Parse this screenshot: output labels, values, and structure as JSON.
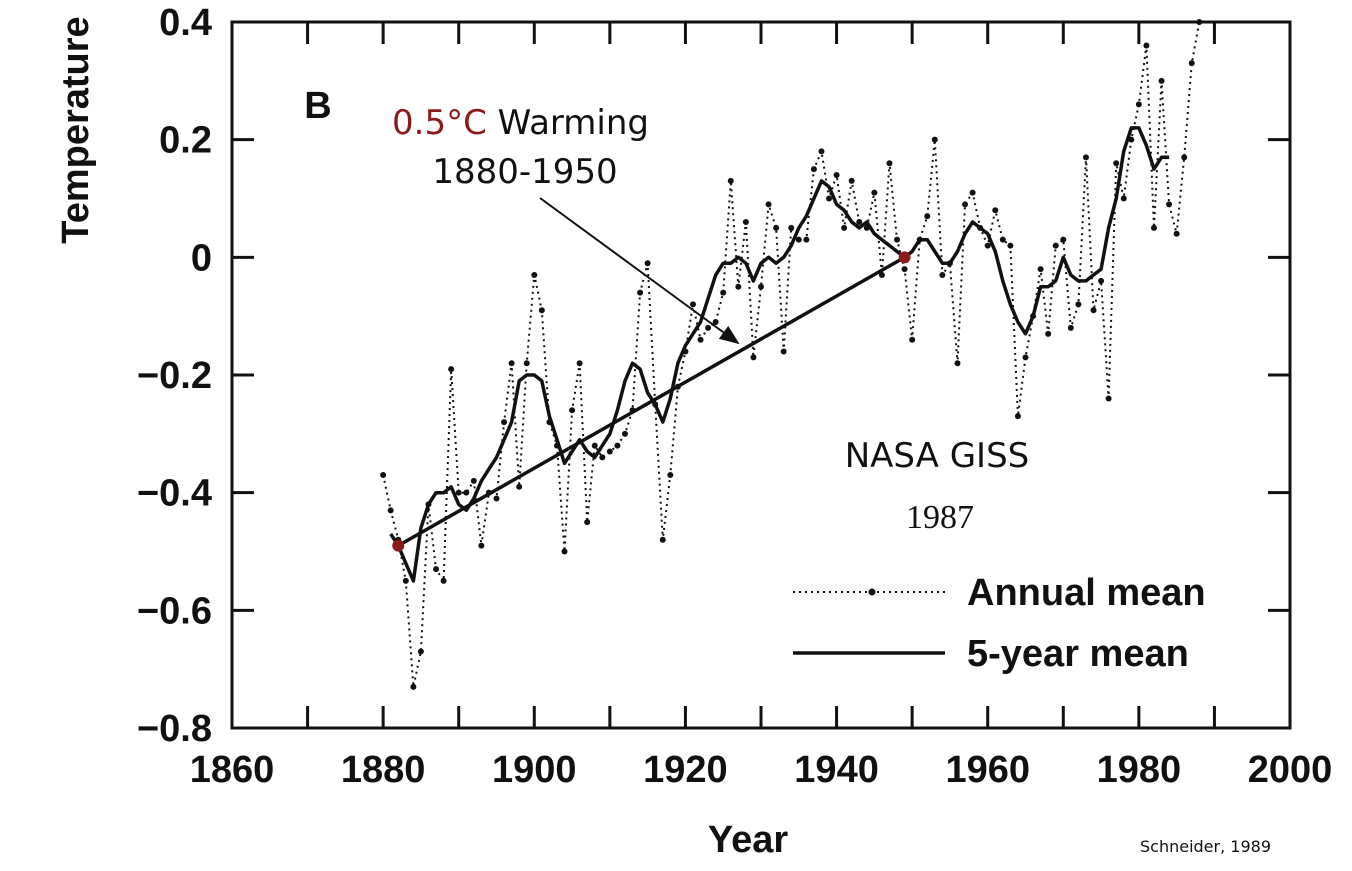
{
  "chart_data": {
    "type": "line",
    "panel_label": "B",
    "xlabel": "Year",
    "ylabel": "Temperature",
    "source": "Schneider, 1989",
    "annotations": {
      "warming_amount": "0.5°C",
      "warming_word": "Warming",
      "warming_period": "1880-1950",
      "agency": "NASA GISS",
      "agency_year": "1987"
    },
    "xlim": [
      1860,
      2000
    ],
    "xticks": [
      1860,
      1880,
      1900,
      1920,
      1940,
      1960,
      1980,
      2000
    ],
    "xminorticks": [
      1870,
      1890,
      1910,
      1930,
      1950,
      1970,
      1990
    ],
    "ylim": [
      -0.8,
      0.4
    ],
    "yticks": [
      {
        "value": -0.8,
        "label": "−0.8"
      },
      {
        "value": -0.6,
        "label": "−0.6"
      },
      {
        "value": -0.4,
        "label": "−0.4"
      },
      {
        "value": -0.2,
        "label": "−0.2"
      },
      0,
      0.2,
      0.4
    ],
    "legend": "lower right",
    "x": [
      1880,
      1881,
      1882,
      1883,
      1884,
      1885,
      1886,
      1887,
      1888,
      1889,
      1890,
      1891,
      1892,
      1893,
      1894,
      1895,
      1896,
      1897,
      1898,
      1899,
      1900,
      1901,
      1902,
      1903,
      1904,
      1905,
      1906,
      1907,
      1908,
      1909,
      1910,
      1911,
      1912,
      1913,
      1914,
      1915,
      1916,
      1917,
      1918,
      1919,
      1920,
      1921,
      1922,
      1923,
      1924,
      1925,
      1926,
      1927,
      1928,
      1929,
      1930,
      1931,
      1932,
      1933,
      1934,
      1935,
      1936,
      1937,
      1938,
      1939,
      1940,
      1941,
      1942,
      1943,
      1944,
      1945,
      1946,
      1947,
      1948,
      1949,
      1950,
      1951,
      1952,
      1953,
      1954,
      1955,
      1956,
      1957,
      1958,
      1959,
      1960,
      1961,
      1962,
      1963,
      1964,
      1965,
      1966,
      1967,
      1968,
      1969,
      1970,
      1971,
      1972,
      1973,
      1974,
      1975,
      1976,
      1977,
      1978,
      1979,
      1980,
      1981,
      1982,
      1983,
      1984,
      1985,
      1986,
      1987,
      1988
    ],
    "series": [
      {
        "name": "Annual mean",
        "color": "#111111",
        "style": "dotted",
        "values": [
          -0.37,
          -0.43,
          -0.48,
          -0.55,
          -0.73,
          -0.67,
          -0.42,
          -0.53,
          -0.55,
          -0.19,
          -0.4,
          -0.4,
          -0.38,
          -0.49,
          -0.4,
          -0.41,
          -0.28,
          -0.18,
          -0.39,
          -0.18,
          -0.03,
          -0.09,
          -0.28,
          -0.32,
          -0.5,
          -0.26,
          -0.18,
          -0.45,
          -0.32,
          -0.34,
          -0.33,
          -0.32,
          -0.3,
          -0.26,
          -0.06,
          -0.01,
          -0.25,
          -0.48,
          -0.37,
          -0.22,
          -0.16,
          -0.08,
          -0.14,
          -0.12,
          -0.11,
          -0.06,
          0.13,
          -0.05,
          0.06,
          -0.17,
          -0.05,
          0.09,
          0.05,
          -0.16,
          0.05,
          0.03,
          0.03,
          0.15,
          0.18,
          0.1,
          0.14,
          0.05,
          0.13,
          0.06,
          0.05,
          0.11,
          -0.03,
          0.16,
          0.03,
          -0.02,
          -0.14,
          0.03,
          0.07,
          0.2,
          -0.03,
          -0.01,
          -0.18,
          0.09,
          0.11,
          0.05,
          0.02,
          0.08,
          0.03,
          0.02,
          -0.27,
          -0.17,
          -0.1,
          -0.02,
          -0.13,
          0.02,
          0.03,
          -0.12,
          -0.08,
          0.17,
          -0.09,
          -0.04,
          -0.24,
          0.16,
          0.1,
          0.2,
          0.26,
          0.36,
          0.05,
          0.3,
          0.09,
          0.04,
          0.17,
          0.33,
          0.4
        ]
      },
      {
        "name": "5-year mean",
        "color": "#111111",
        "style": "solid",
        "values": [
          null,
          -0.47,
          -0.49,
          -0.52,
          -0.55,
          -0.46,
          -0.42,
          -0.4,
          -0.4,
          -0.39,
          -0.42,
          -0.43,
          -0.41,
          -0.38,
          -0.36,
          -0.34,
          -0.31,
          -0.28,
          -0.21,
          -0.2,
          -0.2,
          -0.21,
          -0.27,
          -0.31,
          -0.35,
          -0.33,
          -0.31,
          -0.33,
          -0.34,
          -0.32,
          -0.3,
          -0.26,
          -0.21,
          -0.18,
          -0.19,
          -0.23,
          -0.25,
          -0.28,
          -0.24,
          -0.18,
          -0.15,
          -0.13,
          -0.11,
          -0.07,
          -0.03,
          -0.01,
          -0.01,
          0.0,
          -0.01,
          -0.04,
          -0.01,
          0.0,
          -0.01,
          0.0,
          0.02,
          0.05,
          0.07,
          0.1,
          0.13,
          0.12,
          0.09,
          0.08,
          0.06,
          0.05,
          0.06,
          0.04,
          0.03,
          0.02,
          0.01,
          0.0,
          0.01,
          0.03,
          0.03,
          0.01,
          -0.01,
          -0.01,
          0.01,
          0.04,
          0.06,
          0.05,
          0.04,
          0.01,
          -0.04,
          -0.08,
          -0.11,
          -0.13,
          -0.1,
          -0.05,
          -0.05,
          -0.04,
          0.0,
          -0.03,
          -0.04,
          -0.04,
          -0.03,
          -0.02,
          0.05,
          0.1,
          0.18,
          0.22,
          0.22,
          0.19,
          0.15,
          0.17,
          0.17,
          null,
          null,
          null,
          null
        ]
      }
    ],
    "trend": {
      "x": [
        1882,
        1949
      ],
      "values": [
        -0.49,
        0
      ],
      "color": "#8b1a1a"
    }
  }
}
